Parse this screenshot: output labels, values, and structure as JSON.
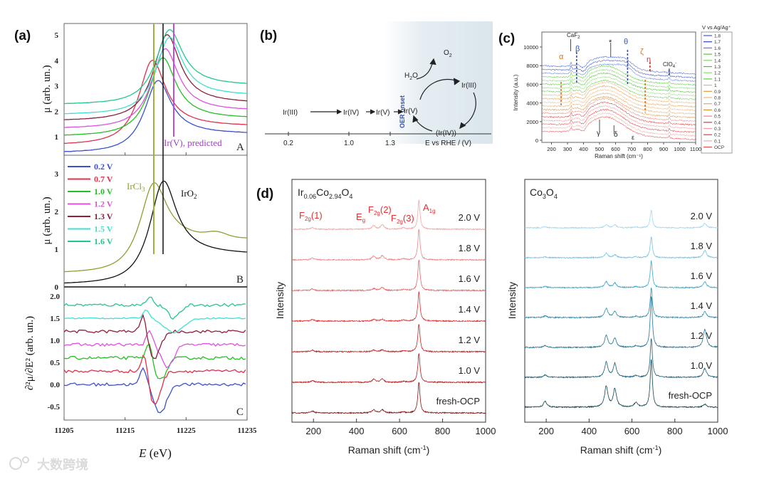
{
  "watermark": "大数跨境",
  "chart_data": [
    {
      "id": "a",
      "panel_label": "(a)",
      "type": "line",
      "xlabel_var": "E",
      "xlabel_unit": " (eV)",
      "xticks": [
        "11205",
        "11215",
        "11225",
        "11235"
      ],
      "xlim": [
        11205,
        11235
      ],
      "A": {
        "tag": "A",
        "ylabel": "μ (arb. un.)",
        "yticks": [
          "1",
          "2",
          "3",
          "4",
          "5"
        ],
        "annotation": "Ir(V), predicted",
        "annotation_E": 11223.0,
        "series": [
          {
            "name": "0.2 V",
            "color": "#3b4fd0",
            "left": 0.35,
            "right": 1.1,
            "peak": 3.2,
            "peak_E": 11220.3
          },
          {
            "name": "0.7 V",
            "color": "#e0304a",
            "left": 0.65,
            "right": 1.4,
            "peak": 4.0,
            "peak_E": 11219.4
          },
          {
            "name": "1.0 V",
            "color": "#22c022",
            "left": 1.0,
            "right": 1.7,
            "peak": 4.1,
            "peak_E": 11221.1
          },
          {
            "name": "1.2 V",
            "color": "#e050e0",
            "left": 1.3,
            "right": 2.0,
            "peak": 4.45,
            "peak_E": 11221.5
          },
          {
            "name": "1.3 V",
            "color": "#8e1e3a",
            "left": 1.6,
            "right": 2.3,
            "peak": 5.0,
            "peak_E": 11221.8
          },
          {
            "name": "1.5 V",
            "color": "#3ee0d0",
            "left": 1.85,
            "right": 2.6,
            "peak": 4.9,
            "peak_E": 11222.2
          },
          {
            "name": "1.6 V",
            "color": "#22c88a",
            "left": 2.25,
            "right": 3.0,
            "peak": 5.2,
            "peak_E": 11222.2
          }
        ]
      },
      "B": {
        "tag": "B",
        "ylabel": "μ (arb. un.)",
        "yticks": [
          "0",
          "1",
          "2",
          "3"
        ],
        "series": [
          {
            "name": "IrCl",
            "sub": "3",
            "color": "#8aa030",
            "left": 0.35,
            "right": 1.25,
            "peak": 2.75,
            "peak_E": 11219.6
          },
          {
            "name": "IrO",
            "sub": "2",
            "color": "#111111",
            "left": 0.05,
            "right": 0.85,
            "peak": 2.8,
            "peak_E": 11221.2
          }
        ]
      },
      "C": {
        "tag": "C",
        "ylabel": "∂²μ/∂E² (arb. un.)",
        "yticks": [
          "-0.5",
          "0.0",
          "0.5",
          "1.0",
          "1.5",
          "2.0"
        ],
        "series": [
          {
            "name": "0.2 V",
            "base": 0.0,
            "spike": 0.38,
            "spike_E": 11218,
            "dip": 0.65,
            "dip_E": 11220.8
          },
          {
            "name": "0.7 V",
            "base": 0.3,
            "spike": 0.55,
            "spike_E": 11218.2,
            "dip": 0.75,
            "dip_E": 11219.8
          },
          {
            "name": "1.0 V",
            "base": 0.6,
            "spike": 0.4,
            "spike_E": 11219,
            "dip": 0.5,
            "dip_E": 11220.8
          },
          {
            "name": "1.2 V",
            "base": 0.9,
            "spike": 0.3,
            "spike_E": 11219,
            "dip": 0.5,
            "dip_E": 11222
          },
          {
            "name": "1.3 V",
            "base": 1.2,
            "spike": 0.45,
            "spike_E": 11218,
            "dip": 0.6,
            "dip_E": 11219.8
          },
          {
            "name": "1.5 V",
            "base": 1.5,
            "spike": 0.2,
            "spike_E": 11218.5,
            "dip": 0.32,
            "dip_E": 11223
          },
          {
            "name": "1.6 V",
            "base": 1.8,
            "spike": 0.2,
            "spike_E": 11219,
            "dip": 0.3,
            "dip_E": 11223
          }
        ]
      }
    },
    {
      "id": "b",
      "panel_label": "(b)",
      "type": "diagram",
      "axis_label": "E vs RHE / (V)",
      "axis_ticks": [
        "0.2",
        "1.0",
        "1.3"
      ],
      "species": [
        "Ir(III)",
        "Ir(IV)",
        "Ir(V)",
        "Ir(V)",
        "Ir(III)",
        "(Ir(IV))"
      ],
      "h2o": "H",
      "h2o_sub": "2",
      "h2o_tail": "O",
      "o2": "O",
      "o2_sub": "2",
      "onset_label": "OER onset"
    },
    {
      "id": "c",
      "panel_label": "(c)",
      "type": "line",
      "xlabel": "Raman shift (cm⁻¹)",
      "ylabel": "Intensity (a.u.)",
      "xlim": [
        140,
        1100
      ],
      "ylim": [
        -300,
        10500
      ],
      "xticks": [
        "200",
        "300",
        "400",
        "500",
        "600",
        "700",
        "800",
        "900",
        "1000",
        "1100"
      ],
      "yticks": [
        "0",
        "2000",
        "4000",
        "6000",
        "8000",
        "10000"
      ],
      "legend_title": "V vs Ag/Ag⁺",
      "annotations": {
        "caf2": "CaF",
        "caf2_sub": "2",
        "clo4": "ClO",
        "clo4_sub": "4",
        "clo4_sup": "-",
        "alpha": "α",
        "beta": "β",
        "star": "*",
        "theta": "θ",
        "zeta": "ζ",
        "eta": "η",
        "gamma": "γ",
        "delta": "δ",
        "epsilon": "ε"
      },
      "series": [
        {
          "name": "1.8",
          "color": "#3a5ad8"
        },
        {
          "name": "1.7",
          "color": "#2a44c0"
        },
        {
          "name": "1.6",
          "color": "#5a78e8"
        },
        {
          "name": "1.5",
          "color": "#55c83a"
        },
        {
          "name": "1.4",
          "color": "#7ad860"
        },
        {
          "name": "1.3",
          "color": "#48c030"
        },
        {
          "name": "1.2",
          "color": "#8ae070"
        },
        {
          "name": "1.1",
          "color": "#60cc44"
        },
        {
          "name": "1",
          "color": "#eeb070"
        },
        {
          "name": "0.9",
          "color": "#e09a40"
        },
        {
          "name": "0.8",
          "color": "#f0b880"
        },
        {
          "name": "0.7",
          "color": "#e8a858"
        },
        {
          "name": "0.6",
          "color": "#d89030"
        },
        {
          "name": "0.5",
          "color": "#f08080"
        },
        {
          "name": "0.4",
          "color": "#d83838"
        },
        {
          "name": "0.3",
          "color": "#f09a9a"
        },
        {
          "name": "0.2",
          "color": "#e03a3a"
        },
        {
          "name": "0.1",
          "color": "#f4a8a8"
        },
        {
          "name": "OCP",
          "color": "#e85050"
        }
      ]
    },
    {
      "id": "d-left",
      "panel_label": "(d)",
      "type": "line",
      "title_parts": [
        "Ir",
        "0.06",
        "Co",
        "2.94",
        "O",
        "4"
      ],
      "xlabel": "Raman shift (cm",
      "xlabel_sup": "-1",
      "xlabel_tail": ")",
      "ylabel": "Intensity",
      "xlim": [
        100,
        1000
      ],
      "xticks": [
        "200",
        "400",
        "600",
        "800",
        "1000"
      ],
      "modes": [
        {
          "main": "F",
          "sub": "2g",
          "tail": "(1)"
        },
        {
          "main": "E",
          "sub": "g",
          "tail": ""
        },
        {
          "main": "F",
          "sub": "2g",
          "tail": "(2)"
        },
        {
          "main": "F",
          "sub": "2g",
          "tail": "(3)"
        },
        {
          "main": "A",
          "sub": "1g",
          "tail": ""
        }
      ],
      "peak_positions": [
        195,
        480,
        520,
        618,
        690
      ],
      "series": [
        {
          "name": "2.0 V",
          "offset": 6,
          "color": "#f4a4a4",
          "heights": [
            0.06,
            0.12,
            0.15,
            0.05,
            0.95
          ]
        },
        {
          "name": "1.8 V",
          "offset": 5,
          "color": "#ee8484",
          "heights": [
            0.06,
            0.12,
            0.14,
            0.04,
            1.0
          ]
        },
        {
          "name": "1.6 V",
          "offset": 4,
          "color": "#e86464",
          "heights": [
            0.05,
            0.06,
            0.1,
            0.03,
            1.0
          ]
        },
        {
          "name": "1.4 V",
          "offset": 3,
          "color": "#e02c2c",
          "heights": [
            0.05,
            0.05,
            0.06,
            0.03,
            0.95
          ]
        },
        {
          "name": "1.2 V",
          "offset": 2,
          "color": "#c81e1e",
          "heights": [
            0.05,
            0.05,
            0.06,
            0.03,
            0.9
          ]
        },
        {
          "name": "1.0 V",
          "offset": 1,
          "color": "#b01818",
          "heights": [
            0.05,
            0.1,
            0.1,
            0.03,
            0.95
          ]
        },
        {
          "name": "fresh-OCP",
          "offset": 0,
          "color": "#8a1212",
          "heights": [
            0.06,
            0.1,
            0.1,
            0.03,
            1.0
          ]
        }
      ]
    },
    {
      "id": "d-right",
      "type": "line",
      "title_parts": [
        "Co",
        "3",
        "O",
        "4"
      ],
      "xlabel": "Raman shift (cm",
      "xlabel_sup": "-1",
      "xlabel_tail": ")",
      "ylabel": "Intensity",
      "xlim": [
        100,
        1000
      ],
      "xticks": [
        "200",
        "400",
        "600",
        "800",
        "1000"
      ],
      "peak_positions": [
        195,
        480,
        520,
        618,
        690,
        940
      ],
      "series": [
        {
          "name": "2.0 V",
          "offset": 6,
          "color": "#a2d8ef",
          "heights": [
            0.03,
            0.1,
            0.1,
            0.03,
            0.6,
            0.15
          ]
        },
        {
          "name": "1.8 V",
          "offset": 5,
          "color": "#74c3e3",
          "heights": [
            0.03,
            0.15,
            0.1,
            0.03,
            0.7,
            0.25
          ]
        },
        {
          "name": "1.6 V",
          "offset": 4,
          "color": "#3ba6cf",
          "heights": [
            0.04,
            0.2,
            0.15,
            0.03,
            0.9,
            0.2
          ]
        },
        {
          "name": "1.4 V",
          "offset": 3,
          "color": "#2a8db5",
          "heights": [
            0.05,
            0.3,
            0.2,
            0.04,
            1.0,
            0.2
          ]
        },
        {
          "name": "1.2 V",
          "offset": 2,
          "color": "#1f7596",
          "heights": [
            0.06,
            0.4,
            0.3,
            0.05,
            1.7,
            0.6
          ]
        },
        {
          "name": "1.0 V",
          "offset": 1,
          "color": "#175e78",
          "heights": [
            0.08,
            0.5,
            0.45,
            0.05,
            1.3,
            0.3
          ]
        },
        {
          "name": "fresh-OCP",
          "offset": 0,
          "color": "#10434f",
          "heights": [
            0.2,
            0.7,
            0.6,
            0.15,
            1.6,
            0.1
          ]
        }
      ]
    }
  ]
}
